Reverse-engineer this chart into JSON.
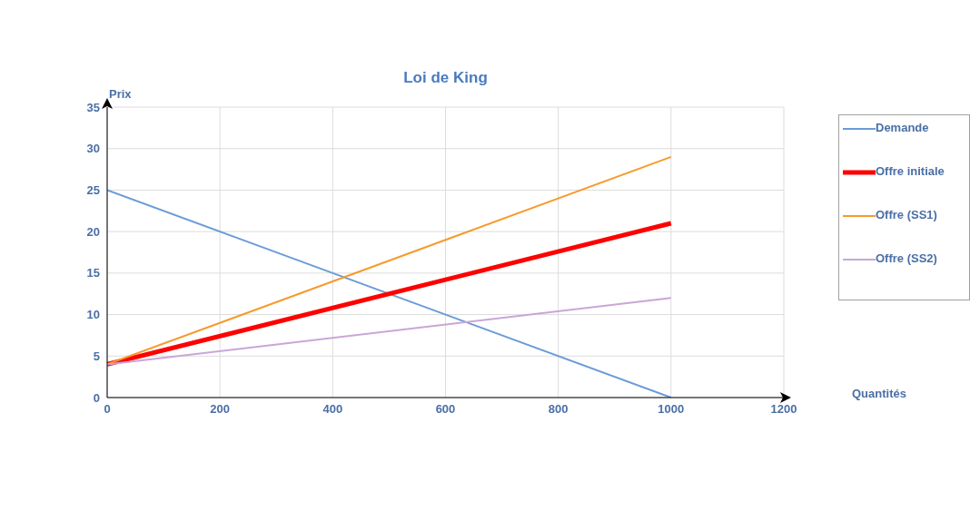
{
  "chart_data": {
    "type": "line",
    "title": "Loi de King",
    "xlabel": "Quantités",
    "ylabel": "Prix",
    "x": [
      0,
      1000
    ],
    "series": [
      {
        "name": "Demande",
        "color": "#6a9bd8",
        "values": [
          25,
          0
        ]
      },
      {
        "name": "Offre initiale",
        "color": "#ff0000",
        "values": [
          4,
          21
        ]
      },
      {
        "name": "Offre (SS1)",
        "color": "#f79a2a",
        "values": [
          4,
          29
        ]
      },
      {
        "name": "Offre (SS2)",
        "color": "#c9a6d8",
        "values": [
          4,
          12
        ]
      }
    ],
    "xlim": [
      0,
      1200
    ],
    "xticks": [
      0,
      200,
      400,
      600,
      800,
      1000,
      1200
    ],
    "ylim": [
      0,
      35
    ],
    "yticks": [
      0,
      5,
      10,
      15,
      20,
      25,
      30,
      35
    ],
    "grid": true,
    "legend": "right",
    "marker": "none",
    "line_style": "solid"
  }
}
